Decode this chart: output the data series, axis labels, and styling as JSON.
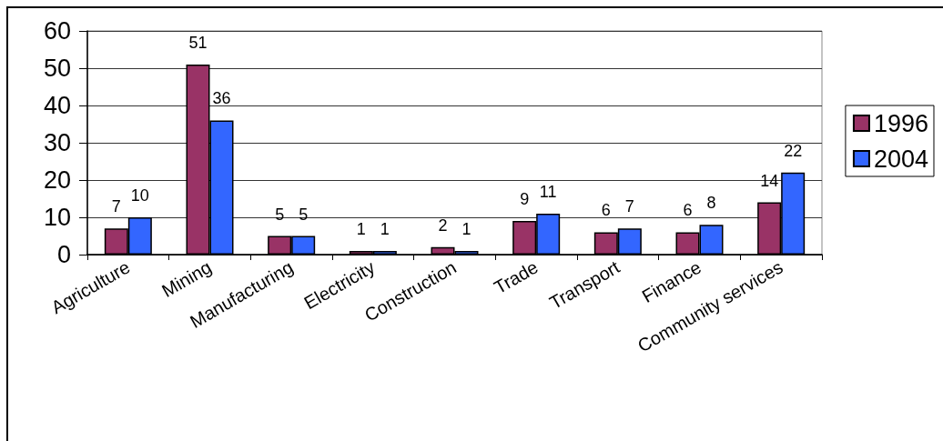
{
  "chart_data": {
    "type": "bar",
    "categories": [
      "Agriculture",
      "Mining",
      "Manufacturing",
      "Electricity",
      "Construction",
      "Trade",
      "Transport",
      "Finance",
      "Community services"
    ],
    "series": [
      {
        "name": "1996",
        "color": "#993366",
        "values": [
          7,
          51,
          5,
          1,
          2,
          9,
          6,
          6,
          14
        ]
      },
      {
        "name": "2004",
        "color": "#3366ff",
        "values": [
          10,
          36,
          5,
          1,
          1,
          11,
          7,
          8,
          22
        ]
      }
    ],
    "ylim": [
      0,
      60
    ],
    "yticks": [
      0,
      10,
      20,
      30,
      40,
      50,
      60
    ],
    "grid": "y",
    "legend": "right",
    "data_labels": true
  }
}
